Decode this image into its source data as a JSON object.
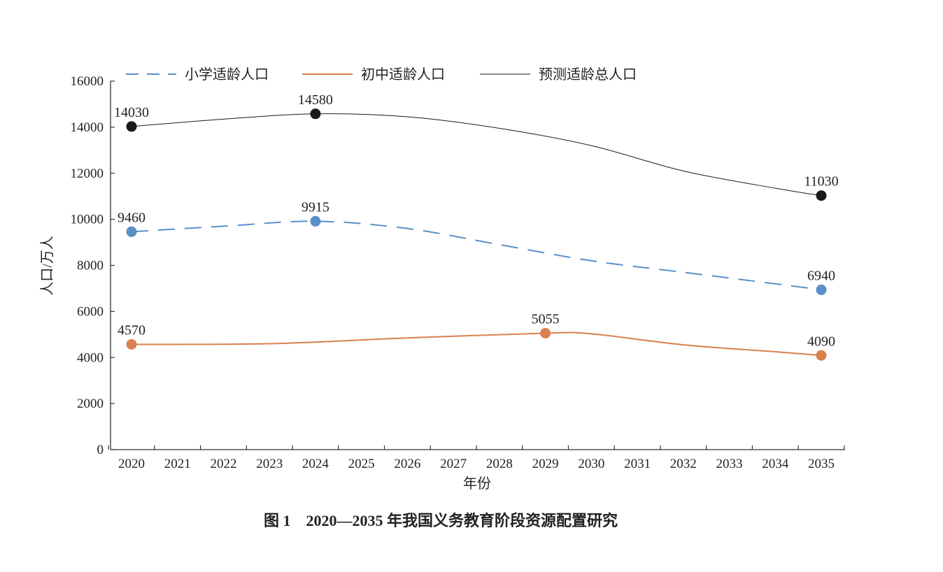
{
  "chart_data": {
    "type": "line",
    "title": "",
    "caption": "图 1　2020—2035 年我国义务教育阶段资源配置研究",
    "xlabel": "年份",
    "ylabel": "人口/万人",
    "ylim": [
      0,
      16000
    ],
    "yticks": [
      0,
      2000,
      4000,
      6000,
      8000,
      10000,
      12000,
      14000,
      16000
    ],
    "x": [
      2020,
      2021,
      2022,
      2023,
      2024,
      2025,
      2026,
      2027,
      2028,
      2029,
      2030,
      2031,
      2032,
      2033,
      2034,
      2035
    ],
    "grid": false,
    "legend_position": "top",
    "series": [
      {
        "name": "小学适龄人口",
        "style": "dashed",
        "color": "#5b8fc9",
        "curve_x": [
          2020,
          2022,
          2024,
          2026,
          2028,
          2030,
          2032,
          2034,
          2035
        ],
        "curve_y": [
          9460,
          9700,
          9915,
          9600,
          8900,
          8200,
          7700,
          7200,
          6940
        ],
        "markers": [
          {
            "x": 2020,
            "y": 9460,
            "label": "9460"
          },
          {
            "x": 2024,
            "y": 9915,
            "label": "9915"
          },
          {
            "x": 2035,
            "y": 6940,
            "label": "6940"
          }
        ]
      },
      {
        "name": "初中适龄人口",
        "style": "solid",
        "color": "#d9804f",
        "curve_x": [
          2020,
          2023,
          2026,
          2029,
          2030,
          2032,
          2034,
          2035
        ],
        "curve_y": [
          4570,
          4600,
          4850,
          5055,
          5030,
          4550,
          4250,
          4090
        ],
        "markers": [
          {
            "x": 2020,
            "y": 4570,
            "label": "4570"
          },
          {
            "x": 2029,
            "y": 5055,
            "label": "5055"
          },
          {
            "x": 2035,
            "y": 4090,
            "label": "4090"
          }
        ]
      },
      {
        "name": "预测适龄总人口",
        "style": "thin",
        "color": "#1a1a1a",
        "curve_x": [
          2020,
          2022,
          2024,
          2026,
          2028,
          2030,
          2032,
          2034,
          2035
        ],
        "curve_y": [
          14030,
          14350,
          14580,
          14450,
          13950,
          13200,
          12100,
          11350,
          11030
        ],
        "markers": [
          {
            "x": 2020,
            "y": 14030,
            "label": "14030"
          },
          {
            "x": 2024,
            "y": 14580,
            "label": "14580"
          },
          {
            "x": 2035,
            "y": 11030,
            "label": "11030"
          }
        ]
      }
    ]
  }
}
